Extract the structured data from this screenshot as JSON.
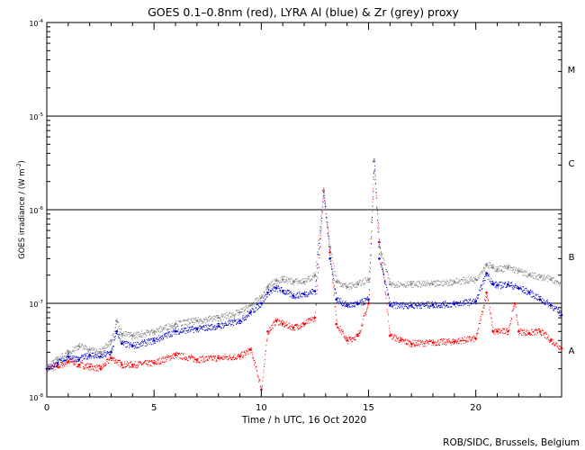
{
  "chart_data": {
    "type": "scatter",
    "title": "GOES 0.1–0.8nm (red), LYRA Al (blue) & Zr (grey) proxy",
    "xlabel": "Time / h UTC, 16 Oct 2020",
    "ylabel_main": "GOES irradiance / (W m",
    "ylabel_sup": "-2",
    "ylabel_tail": ")",
    "xlim": [
      0,
      24
    ],
    "ylim": [
      1e-08,
      0.0001
    ],
    "yscale": "log",
    "xticks": [
      0,
      5,
      10,
      15,
      20
    ],
    "yticks": [
      {
        "value": 1e-08,
        "base": "10",
        "exp": "-8"
      },
      {
        "value": 1e-07,
        "base": "10",
        "exp": "-7"
      },
      {
        "value": 1e-06,
        "base": "10",
        "exp": "-6"
      },
      {
        "value": 1e-05,
        "base": "10",
        "exp": "-5"
      },
      {
        "value": 0.0001,
        "base": "10",
        "exp": "-4"
      }
    ],
    "flare_class_lines": [
      1e-07,
      1e-06,
      1e-05
    ],
    "flare_classes": [
      {
        "label": "A",
        "value": 3.16e-08
      },
      {
        "label": "B",
        "value": 3.16e-07
      },
      {
        "label": "C",
        "value": 3.16e-06
      },
      {
        "label": "M",
        "value": 3.16e-05
      }
    ],
    "series": [
      {
        "name": "GOES 0.1-0.8nm",
        "color": "#ff0000",
        "x": [
          0,
          0.5,
          1,
          1.5,
          2,
          2.5,
          3,
          3.5,
          4,
          5,
          6,
          7,
          8,
          9,
          9.5,
          10,
          10.3,
          10.7,
          11,
          11.5,
          12,
          12.5,
          12.9,
          13.2,
          13.5,
          14,
          14.5,
          15,
          15.25,
          15.5,
          16,
          16.5,
          17,
          18,
          19,
          20,
          20.5,
          20.8,
          21,
          21.5,
          21.8,
          22,
          22.5,
          23,
          23.5,
          24
        ],
        "values": [
          2e-08,
          2.1e-08,
          2.4e-08,
          2.2e-08,
          2.1e-08,
          2e-08,
          2.6e-08,
          2.2e-08,
          2.2e-08,
          2.3e-08,
          2.8e-08,
          2.5e-08,
          2.6e-08,
          2.7e-08,
          3.2e-08,
          1.2e-08,
          5e-08,
          6.5e-08,
          6e-08,
          5.5e-08,
          6e-08,
          7e-08,
          1.6e-06,
          3.5e-07,
          6e-08,
          4e-08,
          4.5e-08,
          1e-07,
          3.3e-06,
          4.5e-07,
          4.5e-08,
          4e-08,
          3.7e-08,
          3.8e-08,
          3.9e-08,
          4.2e-08,
          1.3e-07,
          5e-08,
          5e-08,
          5e-08,
          1e-07,
          5e-08,
          4.8e-08,
          5e-08,
          4e-08,
          3.3e-08
        ]
      },
      {
        "name": "LYRA Al",
        "color": "#0000cc",
        "x": [
          0,
          0.5,
          1,
          1.5,
          2,
          2.5,
          3,
          3.25,
          3.5,
          4,
          5,
          6,
          7,
          8,
          9,
          9.5,
          10,
          10.3,
          10.7,
          11,
          11.5,
          12,
          12.5,
          12.9,
          13.2,
          13.5,
          14,
          14.5,
          15,
          15.25,
          15.5,
          16,
          17,
          18,
          19,
          20,
          20.5,
          20.8,
          21,
          21.5,
          22,
          22.5,
          23,
          23.5,
          24
        ],
        "values": [
          2e-08,
          2.3e-08,
          2.7e-08,
          2.5e-08,
          2.8e-08,
          2.7e-08,
          3e-08,
          5e-08,
          3.7e-08,
          3.5e-08,
          4e-08,
          5e-08,
          5.3e-08,
          5.7e-08,
          6.5e-08,
          8e-08,
          1e-07,
          1.3e-07,
          1.45e-07,
          1.35e-07,
          1.2e-07,
          1.25e-07,
          1.35e-07,
          1.6e-06,
          3e-07,
          1.1e-07,
          9.5e-08,
          9.8e-08,
          1.1e-07,
          3.3e-06,
          3e-07,
          9.5e-08,
          9.5e-08,
          9.6e-08,
          9.8e-08,
          1.05e-07,
          2.1e-07,
          1.6e-07,
          1.55e-07,
          1.6e-07,
          1.45e-07,
          1.3e-07,
          1.1e-07,
          9.5e-08,
          7.5e-08
        ]
      },
      {
        "name": "LYRA Zr",
        "color": "#888888",
        "x": [
          0,
          0.5,
          1,
          1.5,
          2,
          2.5,
          3,
          3.25,
          3.5,
          4,
          5,
          6,
          7,
          8,
          9,
          9.5,
          10,
          10.3,
          10.7,
          11,
          11.5,
          12,
          12.5,
          12.9,
          13.2,
          13.5,
          14,
          14.5,
          15,
          15.25,
          15.5,
          16,
          17,
          18,
          19,
          20,
          20.5,
          20.8,
          21,
          21.5,
          22,
          22.5,
          23,
          23.5,
          24
        ],
        "values": [
          2.1e-08,
          2.5e-08,
          3e-08,
          3.5e-08,
          3.2e-08,
          3e-08,
          4e-08,
          6.5e-08,
          4.7e-08,
          4.5e-08,
          5e-08,
          6e-08,
          6.5e-08,
          7e-08,
          8e-08,
          9.5e-08,
          1.15e-07,
          1.5e-07,
          1.75e-07,
          1.8e-07,
          1.7e-07,
          1.7e-07,
          2e-07,
          1.6e-06,
          4e-07,
          1.7e-07,
          1.5e-07,
          1.6e-07,
          1.8e-07,
          3.3e-06,
          4e-07,
          1.6e-07,
          1.6e-07,
          1.6e-07,
          1.7e-07,
          1.8e-07,
          2.6e-07,
          2.4e-07,
          2.3e-07,
          2.4e-07,
          2.2e-07,
          2e-07,
          1.9e-07,
          1.8e-07,
          1.6e-07
        ]
      }
    ],
    "footer": "ROB/SIDC, Brussels, Belgium"
  }
}
